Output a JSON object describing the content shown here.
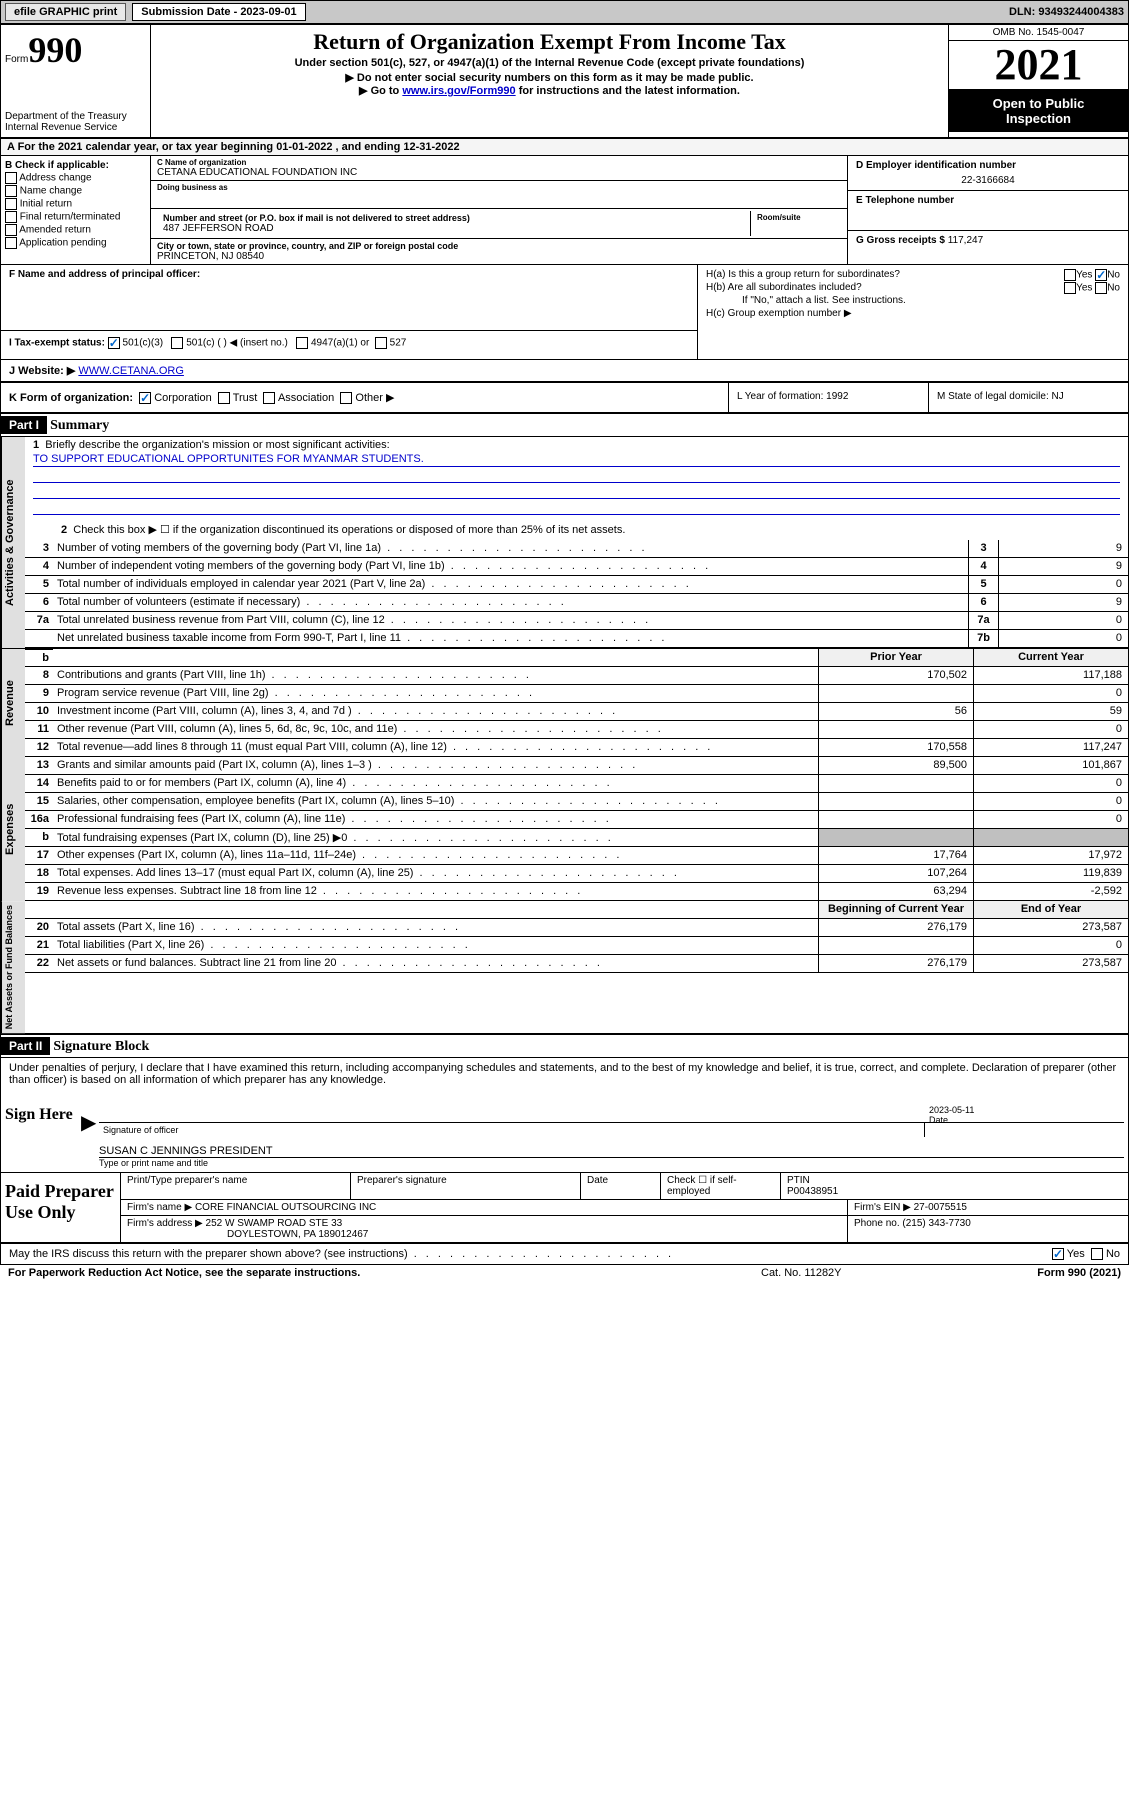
{
  "topbar": {
    "efile": "efile GRAPHIC print",
    "submission_label": "Submission Date - 2023-09-01",
    "dln": "DLN: 93493244004383"
  },
  "header": {
    "form_label": "Form",
    "form_number": "990",
    "dept1": "Department of the Treasury",
    "dept2": "Internal Revenue Service",
    "title": "Return of Organization Exempt From Income Tax",
    "subtitle": "Under section 501(c), 527, or 4947(a)(1) of the Internal Revenue Code (except private foundations)",
    "note1": "▶ Do not enter social security numbers on this form as it may be made public.",
    "note2_pre": "▶ Go to ",
    "note2_link": "www.irs.gov/Form990",
    "note2_post": " for instructions and the latest information.",
    "omb": "OMB No. 1545-0047",
    "year": "2021",
    "open1": "Open to Public",
    "open2": "Inspection"
  },
  "row_a": "A For the 2021 calendar year, or tax year beginning 01-01-2022   , and ending 12-31-2022",
  "section_b": {
    "label": "B Check if applicable:",
    "opts": [
      "Address change",
      "Name change",
      "Initial return",
      "Final return/terminated",
      "Amended return",
      "Application pending"
    ]
  },
  "section_c": {
    "name_lbl": "C Name of organization",
    "name": "CETANA EDUCATIONAL FOUNDATION INC",
    "dba_lbl": "Doing business as",
    "dba": "",
    "addr_lbl": "Number and street (or P.O. box if mail is not delivered to street address)",
    "room_lbl": "Room/suite",
    "addr": "487 JEFFERSON ROAD",
    "city_lbl": "City or town, state or province, country, and ZIP or foreign postal code",
    "city": "PRINCETON, NJ  08540"
  },
  "section_d": {
    "label": "D Employer identification number",
    "value": "22-3166684"
  },
  "section_e": {
    "label": "E Telephone number",
    "value": ""
  },
  "section_g": {
    "label": "G Gross receipts $ ",
    "value": "117,247"
  },
  "section_f": {
    "label": "F Name and address of principal officer:",
    "value": ""
  },
  "section_h": {
    "ha": "H(a)  Is this a group return for subordinates?",
    "hb": "H(b)  Are all subordinates included?",
    "hb_note": "If \"No,\" attach a list. See instructions.",
    "hc": "H(c)  Group exemption number ▶"
  },
  "row_i": {
    "label": "I   Tax-exempt status:",
    "opts": [
      "501(c)(3)",
      "501(c) (  ) ◀ (insert no.)",
      "4947(a)(1) or",
      "527"
    ]
  },
  "row_j": {
    "label": "J   Website: ▶ ",
    "value": "WWW.CETANA.ORG"
  },
  "row_k": {
    "label": "K Form of organization:",
    "opts": [
      "Corporation",
      "Trust",
      "Association",
      "Other ▶"
    ]
  },
  "row_l": "L Year of formation: 1992",
  "row_m": "M State of legal domicile: NJ",
  "part1": {
    "header": "Part I",
    "title": "Summary",
    "line1": "Briefly describe the organization's mission or most significant activities:",
    "mission": "TO SUPPORT EDUCATIONAL OPPORTUNITES FOR MYANMAR STUDENTS.",
    "line2": "Check this box ▶ ☐  if the organization discontinued its operations or disposed of more than 25% of its net assets."
  },
  "activities_lines": [
    {
      "n": "3",
      "d": "Number of voting members of the governing body (Part VI, line 1a)",
      "box": "3",
      "v": "9"
    },
    {
      "n": "4",
      "d": "Number of independent voting members of the governing body (Part VI, line 1b)",
      "box": "4",
      "v": "9"
    },
    {
      "n": "5",
      "d": "Total number of individuals employed in calendar year 2021 (Part V, line 2a)",
      "box": "5",
      "v": "0"
    },
    {
      "n": "6",
      "d": "Total number of volunteers (estimate if necessary)",
      "box": "6",
      "v": "9"
    },
    {
      "n": "7a",
      "d": "Total unrelated business revenue from Part VIII, column (C), line 12",
      "box": "7a",
      "v": "0"
    },
    {
      "n": "",
      "d": "Net unrelated business taxable income from Form 990-T, Part I, line 11",
      "box": "7b",
      "v": "0"
    }
  ],
  "rev_exp_header": {
    "py": "Prior Year",
    "cy": "Current Year"
  },
  "revenue_lines": [
    {
      "n": "8",
      "d": "Contributions and grants (Part VIII, line 1h)",
      "py": "170,502",
      "cy": "117,188"
    },
    {
      "n": "9",
      "d": "Program service revenue (Part VIII, line 2g)",
      "py": "",
      "cy": "0"
    },
    {
      "n": "10",
      "d": "Investment income (Part VIII, column (A), lines 3, 4, and 7d )",
      "py": "56",
      "cy": "59"
    },
    {
      "n": "11",
      "d": "Other revenue (Part VIII, column (A), lines 5, 6d, 8c, 9c, 10c, and 11e)",
      "py": "",
      "cy": "0"
    },
    {
      "n": "12",
      "d": "Total revenue—add lines 8 through 11 (must equal Part VIII, column (A), line 12)",
      "py": "170,558",
      "cy": "117,247"
    }
  ],
  "expense_lines": [
    {
      "n": "13",
      "d": "Grants and similar amounts paid (Part IX, column (A), lines 1–3 )",
      "py": "89,500",
      "cy": "101,867"
    },
    {
      "n": "14",
      "d": "Benefits paid to or for members (Part IX, column (A), line 4)",
      "py": "",
      "cy": "0"
    },
    {
      "n": "15",
      "d": "Salaries, other compensation, employee benefits (Part IX, column (A), lines 5–10)",
      "py": "",
      "cy": "0"
    },
    {
      "n": "16a",
      "d": "Professional fundraising fees (Part IX, column (A), line 11e)",
      "py": "",
      "cy": "0"
    },
    {
      "n": "b",
      "d": "Total fundraising expenses (Part IX, column (D), line 25) ▶0",
      "py": "__shaded__",
      "cy": "__shaded__"
    },
    {
      "n": "17",
      "d": "Other expenses (Part IX, column (A), lines 11a–11d, 11f–24e)",
      "py": "17,764",
      "cy": "17,972"
    },
    {
      "n": "18",
      "d": "Total expenses. Add lines 13–17 (must equal Part IX, column (A), line 25)",
      "py": "107,264",
      "cy": "119,839"
    },
    {
      "n": "19",
      "d": "Revenue less expenses. Subtract line 18 from line 12",
      "py": "63,294",
      "cy": "-2,592"
    }
  ],
  "net_header": {
    "py": "Beginning of Current Year",
    "cy": "End of Year"
  },
  "net_lines": [
    {
      "n": "20",
      "d": "Total assets (Part X, line 16)",
      "py": "276,179",
      "cy": "273,587"
    },
    {
      "n": "21",
      "d": "Total liabilities (Part X, line 26)",
      "py": "",
      "cy": "0"
    },
    {
      "n": "22",
      "d": "Net assets or fund balances. Subtract line 21 from line 20",
      "py": "276,179",
      "cy": "273,587"
    }
  ],
  "side_labels": {
    "activities": "Activities & Governance",
    "revenue": "Revenue",
    "expenses": "Expenses",
    "net": "Net Assets or Fund Balances"
  },
  "part2": {
    "header": "Part II",
    "title": "Signature Block",
    "penalties": "Under penalties of perjury, I declare that I have examined this return, including accompanying schedules and statements, and to the best of my knowledge and belief, it is true, correct, and complete. Declaration of preparer (other than officer) is based on all information of which preparer has any knowledge."
  },
  "sign": {
    "label": "Sign Here",
    "sig_lbl": "Signature of officer",
    "date_lbl": "Date",
    "date": "2023-05-11",
    "name": "SUSAN C JENNINGS  PRESIDENT",
    "name_lbl": "Type or print name and title"
  },
  "preparer": {
    "label": "Paid Preparer Use Only",
    "h1": "Print/Type preparer's name",
    "h2": "Preparer's signature",
    "h3": "Date",
    "h4_pre": "Check ☐ if self-employed",
    "h5": "PTIN",
    "ptin": "P00438951",
    "firm_lbl": "Firm's name    ▶",
    "firm": "CORE FINANCIAL OUTSOURCING INC",
    "ein_lbl": "Firm's EIN ▶",
    "ein": "27-0075515",
    "addr_lbl": "Firm's address ▶",
    "addr1": "252 W SWAMP ROAD STE 33",
    "addr2": "DOYLESTOWN, PA  189012467",
    "phone_lbl": "Phone no.",
    "phone": "(215) 343-7730"
  },
  "footer": {
    "discuss": "May the IRS discuss this return with the preparer shown above? (see instructions)",
    "yes": "Yes",
    "no": "No",
    "paperwork": "For Paperwork Reduction Act Notice, see the separate instructions.",
    "cat": "Cat. No. 11282Y",
    "form": "Form 990 (2021)"
  }
}
